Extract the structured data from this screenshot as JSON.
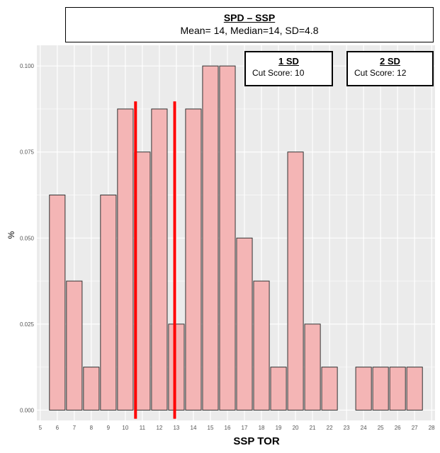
{
  "title": {
    "main": "SPD – SSP",
    "stats": "Mean= 14, Median=14, SD=4.8"
  },
  "annotations": [
    {
      "heading": "1 SD",
      "text": "Cut Score: 10"
    },
    {
      "heading": "2 SD",
      "text": "Cut Score: 12"
    }
  ],
  "colors": {
    "bar_fill": "#F4B5B5",
    "bar_stroke": "#333333",
    "panel_bg": "#EBEBEB",
    "grid": "#FFFFFF",
    "cut_line": "#FF0000"
  },
  "chart_data": {
    "type": "bar",
    "title": "SPD – SSP",
    "subtitle": "Mean= 14, Median=14, SD=4.8",
    "xlabel": "SSP TOR",
    "ylabel": "%",
    "x_ticks": [
      5,
      6,
      7,
      8,
      9,
      10,
      11,
      12,
      13,
      14,
      15,
      16,
      17,
      18,
      19,
      20,
      21,
      22,
      23,
      24,
      25,
      26,
      27,
      28
    ],
    "xlim": [
      4.8,
      28.2
    ],
    "y_ticks": [
      0.0,
      0.025,
      0.05,
      0.075,
      0.1
    ],
    "y_tick_labels": [
      "0.000",
      "0.025",
      "0.050",
      "0.075",
      "0.100"
    ],
    "ylim": [
      -0.003,
      0.106
    ],
    "grid": true,
    "x": [
      6,
      7,
      8,
      9,
      10,
      11,
      12,
      13,
      14,
      15,
      16,
      17,
      18,
      19,
      20,
      21,
      22,
      24,
      25,
      26,
      27
    ],
    "values": [
      0.0625,
      0.0375,
      0.0125,
      0.0625,
      0.0875,
      0.075,
      0.0875,
      0.025,
      0.0875,
      0.1,
      0.1,
      0.05,
      0.0375,
      0.0125,
      0.075,
      0.025,
      0.0125,
      0.0125,
      0.0125,
      0.0125,
      0.0125
    ],
    "reference_lines": [
      10.6,
      12.9
    ]
  }
}
